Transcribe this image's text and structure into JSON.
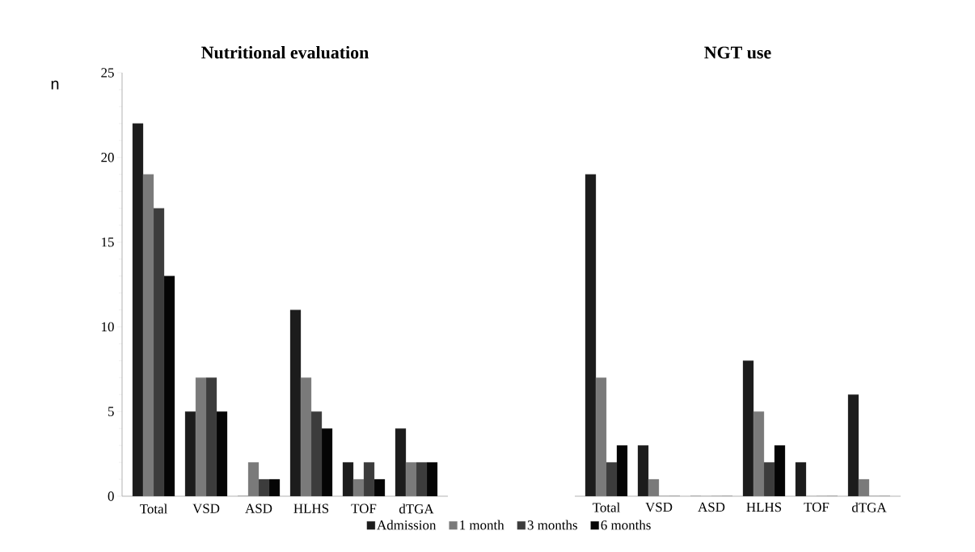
{
  "chart_data": [
    {
      "type": "bar",
      "title": "Nutritional evaluation",
      "ylabel": "n",
      "categories": [
        "Total",
        "VSD",
        "ASD",
        "HLHS",
        "TOF",
        "dTGA"
      ],
      "ylim": [
        0,
        25
      ],
      "yticks": [
        0,
        5,
        10,
        15,
        20,
        25
      ],
      "legend": "bottom",
      "series": [
        {
          "name": "Admission",
          "color": "#1c1c1c",
          "values": [
            22,
            5,
            0,
            11,
            2,
            4
          ]
        },
        {
          "name": "1 month",
          "color": "#7a7a7a",
          "values": [
            19,
            7,
            2,
            7,
            1,
            2
          ]
        },
        {
          "name": "3 months",
          "color": "#3c3c3c",
          "values": [
            17,
            7,
            1,
            5,
            2,
            2
          ]
        },
        {
          "name": "6 months",
          "color": "#050505",
          "values": [
            13,
            5,
            1,
            4,
            1,
            2
          ]
        }
      ]
    },
    {
      "type": "bar",
      "title": "NGT use",
      "categories": [
        "Total",
        "VSD",
        "ASD",
        "HLHS",
        "TOF",
        "dTGA"
      ],
      "ylim": [
        0,
        25
      ],
      "yticks": [
        0,
        5,
        10,
        15,
        20,
        25
      ],
      "tick_labels": "x",
      "series": [
        {
          "color": "#1c1c1c",
          "values": [
            19,
            3,
            0,
            8,
            2,
            6
          ]
        },
        {
          "color": "#7a7a7a",
          "values": [
            7,
            1,
            0,
            5,
            0,
            1
          ]
        },
        {
          "color": "#3c3c3c",
          "values": [
            2,
            0,
            0,
            2,
            0,
            0
          ]
        },
        {
          "color": "#050505",
          "values": [
            3,
            0,
            0,
            3,
            0,
            0
          ]
        }
      ]
    }
  ]
}
